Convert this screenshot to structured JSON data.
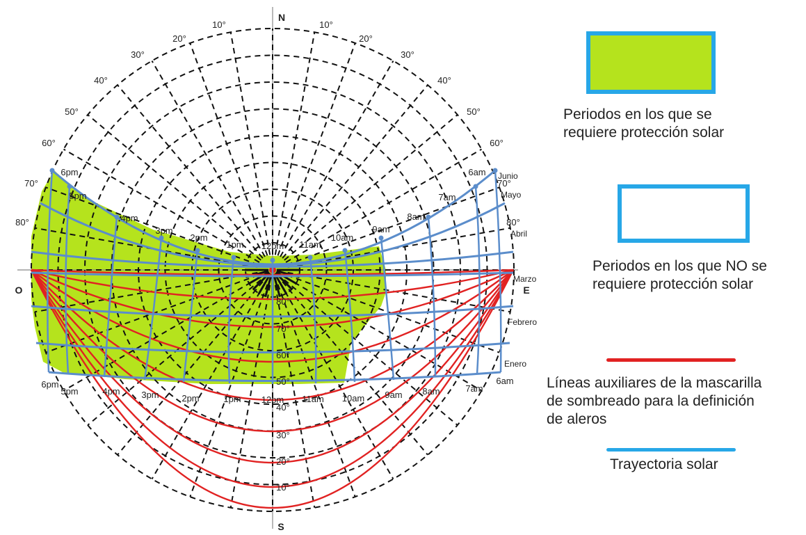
{
  "cardinal": {
    "north": "N",
    "south": "S",
    "east": "E",
    "west": "O"
  },
  "altitude_labels_upper": [
    "10°",
    "20°",
    "30°",
    "40°",
    "50°",
    "60°",
    "70°",
    "80°"
  ],
  "altitude_labels_lower": [
    "80°",
    "70°",
    "60°",
    "50°",
    "40°",
    "30°",
    "20°",
    "10°"
  ],
  "hour_labels_upper": [
    "6pm",
    "5pm",
    "4pm",
    "3pm",
    "2pm",
    "1pm",
    "12pm",
    "11am",
    "10am",
    "9am",
    "8am",
    "7am",
    "6am"
  ],
  "hour_labels_lower": [
    "6pm",
    "5pm",
    "4pm",
    "3pm",
    "2pm",
    "1pm",
    "12pm",
    "11am",
    "10am",
    "9am",
    "8am",
    "7am",
    "6am"
  ],
  "month_labels": [
    "Junio",
    "Mayo",
    "Abril",
    "Marzo",
    "Febrero",
    "Enero"
  ],
  "colors": {
    "shade_fill": "#b5e31d",
    "sun_path": "#5b8dcb",
    "mask_lines": "#e12222",
    "legend_border": "#27a7e7",
    "grid": "#111111"
  },
  "legend": {
    "required_line1": "Periodos en los que se",
    "required_line2": "requiere protección solar",
    "not_required_line1": "Periodos en los que NO se",
    "not_required_line2": "requiere protección solar",
    "mask_line1": "Líneas auxiliares de la mascarilla",
    "mask_line2": "de sombreado para la definición",
    "mask_line3": "de aleros",
    "path": "Trayectoria solar"
  }
}
